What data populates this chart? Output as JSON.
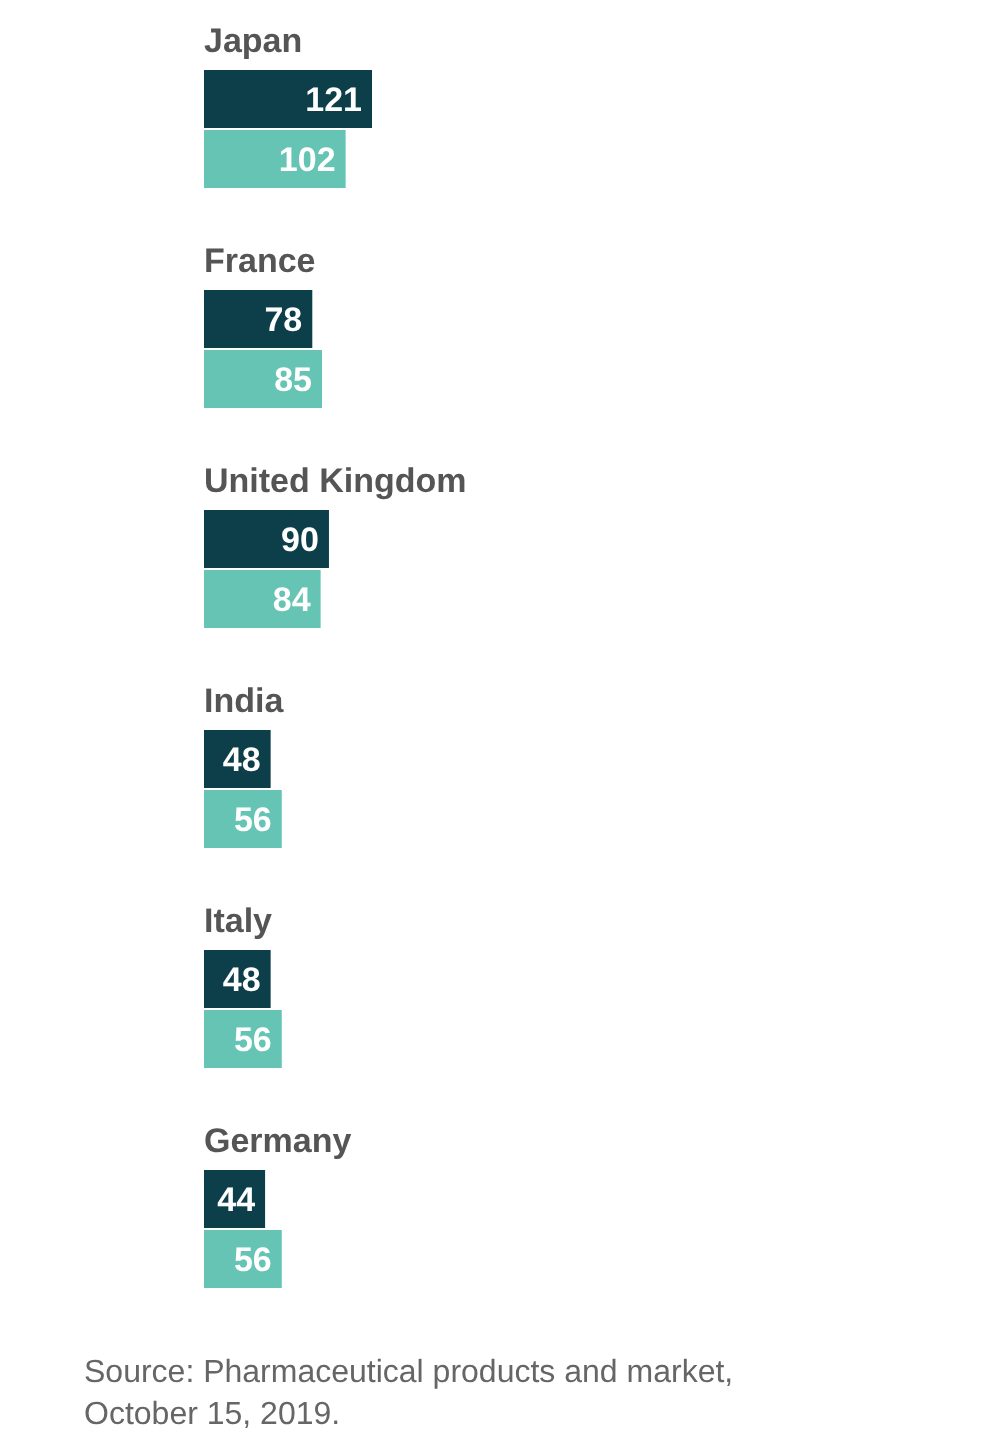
{
  "chart_data": {
    "type": "bar",
    "orientation": "horizontal",
    "categories": [
      "Japan",
      "France",
      "United Kingdom",
      "India",
      "Italy",
      "Germany"
    ],
    "series": [
      {
        "color": "#0d3f4a",
        "values": [
          121,
          78,
          90,
          48,
          48,
          44
        ]
      },
      {
        "color": "#66c4b4",
        "values": [
          102,
          85,
          84,
          56,
          56,
          56
        ]
      }
    ],
    "data_labels": true,
    "annotations": [
      "Source: Pharmaceutical products and market, October 15, 2019."
    ]
  }
}
